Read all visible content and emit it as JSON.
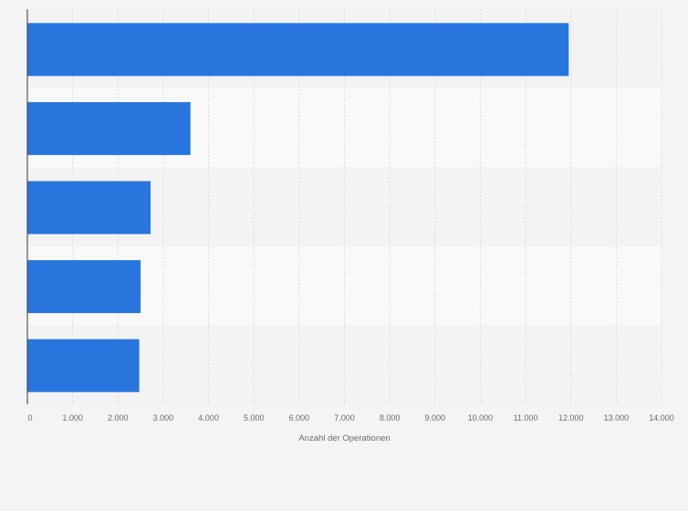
{
  "chart_data": {
    "type": "bar",
    "orientation": "horizontal",
    "categories": [
      "",
      "",
      "",
      "",
      ""
    ],
    "values": [
      11950,
      3600,
      2720,
      2500,
      2470
    ],
    "title": "",
    "xlabel": "Anzahl der Operationen",
    "ylabel": "",
    "xlim": [
      0,
      14000
    ],
    "ticks": [
      "0",
      "1.000",
      "2.000",
      "3.000",
      "4.000",
      "5.000",
      "6.000",
      "7.000",
      "8.000",
      "9.000",
      "10.000",
      "11.000",
      "12.000",
      "13.000",
      "14.000"
    ],
    "grid": true,
    "colors": {
      "bar": "#2876dd",
      "band_a": "#f3f3f4",
      "band_b": "#f9f9f9",
      "grid": "#dcdcdc",
      "axis": "#3a3a3a"
    }
  }
}
